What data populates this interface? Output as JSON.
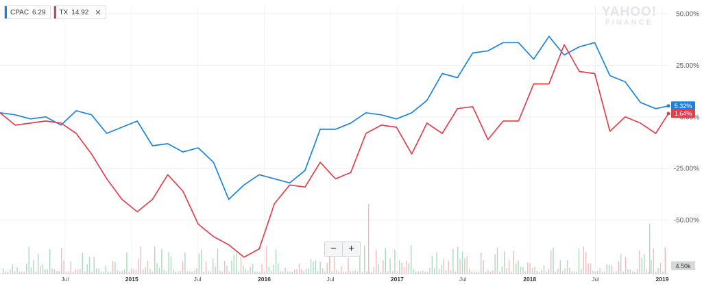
{
  "legend": [
    {
      "symbol": "CPAC",
      "price": "6.29",
      "color": "#1a83e0",
      "closable": false
    },
    {
      "symbol": "TX",
      "price": "14.92",
      "color": "#e43e48",
      "closable": true
    }
  ],
  "watermark": {
    "line1": "YAHOO!",
    "line2": "FINANCE"
  },
  "zoom": {
    "minus": "−",
    "plus": "+"
  },
  "chart_data": {
    "type": "line",
    "y_ticks": [
      "50.00%",
      "25.00%",
      "0.00%",
      "-25.00%",
      "-50.00%"
    ],
    "y_tick_values": [
      50,
      25,
      0,
      -25,
      -50
    ],
    "ylim": [
      -76,
      54
    ],
    "x_ticks": [
      "Jul",
      "2015",
      "Jul",
      "2016",
      "Jul",
      "2017",
      "Jul",
      "2018",
      "Jul",
      "2019"
    ],
    "x_tick_dates": [
      "2014-07-01",
      "2015-01-01",
      "2015-07-01",
      "2016-01-01",
      "2016-07-01",
      "2017-01-01",
      "2017-07-01",
      "2018-01-01",
      "2018-07-01",
      "2019-01-01"
    ],
    "x_range": [
      "2014-01-03",
      "2019-01-18"
    ],
    "volume_label": "4.50k",
    "grid": true,
    "series": [
      {
        "name": "CPAC",
        "color": "#1a83e0",
        "last_label": "5.32%",
        "x": [
          "2014-01-03",
          "2014-02-14",
          "2014-03-28",
          "2014-05-09",
          "2014-06-20",
          "2014-08-01",
          "2014-09-12",
          "2014-10-24",
          "2014-12-05",
          "2015-01-16",
          "2015-02-27",
          "2015-04-10",
          "2015-05-22",
          "2015-07-03",
          "2015-08-14",
          "2015-09-25",
          "2015-11-06",
          "2015-12-18",
          "2016-01-29",
          "2016-03-11",
          "2016-04-22",
          "2016-06-03",
          "2016-07-15",
          "2016-08-26",
          "2016-10-07",
          "2016-11-18",
          "2016-12-30",
          "2017-02-10",
          "2017-03-24",
          "2017-05-05",
          "2017-06-16",
          "2017-07-28",
          "2017-09-08",
          "2017-10-20",
          "2017-12-01",
          "2018-01-12",
          "2018-02-23",
          "2018-04-06",
          "2018-05-18",
          "2018-06-29",
          "2018-08-10",
          "2018-09-21",
          "2018-11-02",
          "2018-12-14",
          "2019-01-18"
        ],
        "y": [
          2,
          1,
          -1,
          0,
          -4,
          3,
          1,
          -8,
          -5,
          -2,
          -14,
          -13,
          -17,
          -15,
          -22,
          -40,
          -33,
          -28,
          -30,
          -32,
          -26,
          -6,
          -6,
          -3,
          2,
          1,
          -1,
          2,
          8,
          21,
          19,
          31,
          32,
          36,
          36,
          28,
          39,
          30,
          34,
          36,
          20,
          17,
          7,
          4,
          5.32
        ]
      },
      {
        "name": "TX",
        "color": "#e43e48",
        "last_label": "1.64%",
        "x": [
          "2014-01-03",
          "2014-02-14",
          "2014-03-28",
          "2014-05-09",
          "2014-06-20",
          "2014-08-01",
          "2014-09-12",
          "2014-10-24",
          "2014-12-05",
          "2015-01-16",
          "2015-02-27",
          "2015-04-10",
          "2015-05-22",
          "2015-07-03",
          "2015-08-14",
          "2015-09-25",
          "2015-11-06",
          "2015-12-18",
          "2016-01-29",
          "2016-03-11",
          "2016-04-22",
          "2016-06-03",
          "2016-07-15",
          "2016-08-26",
          "2016-10-07",
          "2016-11-18",
          "2016-12-30",
          "2017-02-10",
          "2017-03-24",
          "2017-05-05",
          "2017-06-16",
          "2017-07-28",
          "2017-09-08",
          "2017-10-20",
          "2017-12-01",
          "2018-01-12",
          "2018-02-23",
          "2018-04-06",
          "2018-05-18",
          "2018-06-29",
          "2018-08-10",
          "2018-09-21",
          "2018-11-02",
          "2018-12-14",
          "2019-01-18"
        ],
        "y": [
          2,
          -4,
          -3,
          -2,
          -3,
          -8,
          -18,
          -30,
          -40,
          -46,
          -40,
          -28,
          -36,
          -52,
          -58,
          -62,
          -68,
          -64,
          -42,
          -33,
          -34,
          -22,
          -30,
          -27,
          -8,
          -4,
          -5,
          -18,
          -3,
          -8,
          4,
          5,
          -11,
          -2,
          -2,
          16,
          16,
          35,
          22,
          21,
          -7,
          0,
          -3,
          -8,
          1.64
        ]
      }
    ]
  }
}
